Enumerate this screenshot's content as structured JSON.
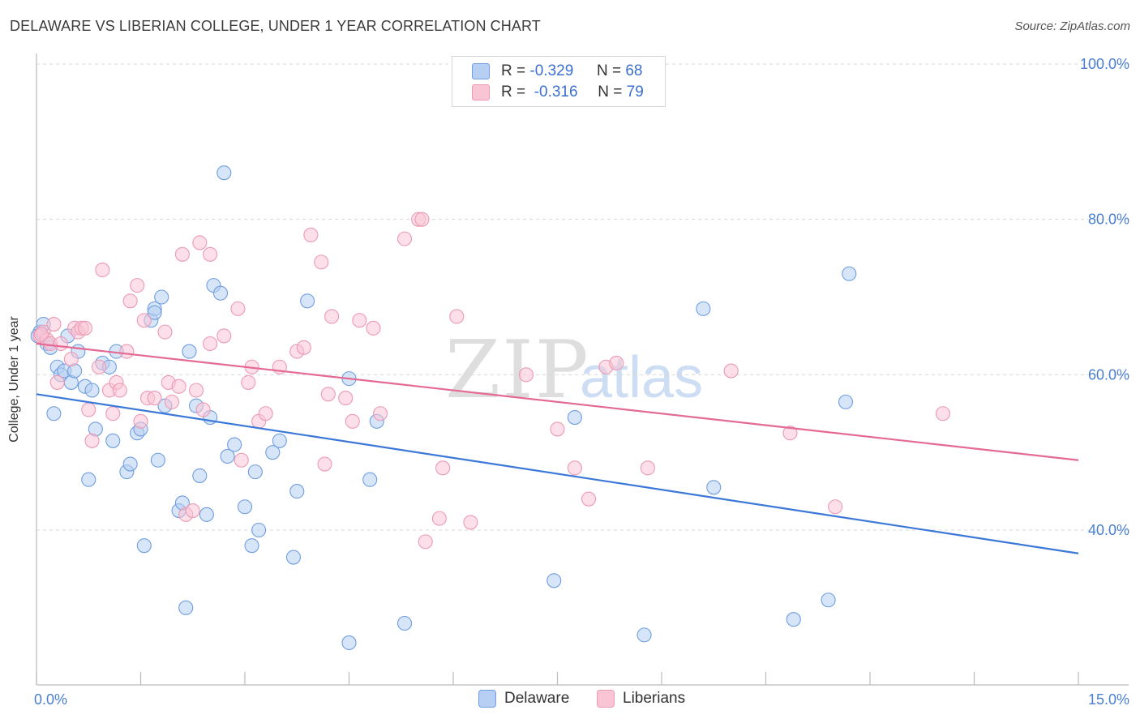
{
  "header": {
    "title": "DELAWARE VS LIBERIAN COLLEGE, UNDER 1 YEAR CORRELATION CHART",
    "source": "Source: ZipAtlas.com"
  },
  "watermark": {
    "zip": "ZIP",
    "atlas": "atlas"
  },
  "legend": {
    "delaware": {
      "r_label": "R =",
      "r_value": "-0.329",
      "n_label": "N =",
      "n_value": "68"
    },
    "liberians": {
      "r_label": "R =",
      "r_value": "-0.316",
      "n_label": "N =",
      "n_value": "79"
    }
  },
  "bottom_legend": {
    "delaware": "Delaware",
    "liberians": "Liberians"
  },
  "colors": {
    "delaware_fill": "#b7cff3",
    "delaware_stroke": "#6f9ee0",
    "delaware_line": "#3b78d8",
    "liberians_fill": "#f9c5d5",
    "liberians_stroke": "#ec9ab4",
    "liberians_line": "#e46a95",
    "grid": "#d8d8d8",
    "tick_text": "#4a7fd0"
  },
  "chart_data": {
    "type": "scatter",
    "title": "DELAWARE VS LIBERIAN COLLEGE, UNDER 1 YEAR CORRELATION CHART",
    "xlabel": "",
    "ylabel": "College, Under 1 year",
    "xlim": [
      0,
      15
    ],
    "ylim": [
      22,
      102
    ],
    "x_tick_labels": [
      {
        "v": 0,
        "label": "0.0%"
      },
      {
        "v": 15,
        "label": "15.0%"
      }
    ],
    "y_tick_labels": [
      {
        "v": 40,
        "label": "40.0%"
      },
      {
        "v": 60,
        "label": "60.0%"
      },
      {
        "v": 80,
        "label": "80.0%"
      },
      {
        "v": 100,
        "label": "100.0%"
      }
    ],
    "series": [
      {
        "name": "Delaware",
        "trend": {
          "x": [
            0,
            15
          ],
          "y": [
            57.5,
            37.0
          ]
        },
        "points": [
          [
            0.05,
            65.5
          ],
          [
            0.1,
            66.5
          ],
          [
            0.15,
            64
          ],
          [
            0.2,
            63.5
          ],
          [
            0.25,
            55
          ],
          [
            0.3,
            61
          ],
          [
            0.35,
            60
          ],
          [
            0.4,
            60.5
          ],
          [
            0.45,
            65
          ],
          [
            0.5,
            59
          ],
          [
            0.55,
            60.5
          ],
          [
            0.6,
            63
          ],
          [
            0.7,
            58.5
          ],
          [
            0.75,
            46.5
          ],
          [
            0.8,
            58
          ],
          [
            0.85,
            53
          ],
          [
            0.95,
            61.5
          ],
          [
            1.05,
            61
          ],
          [
            1.1,
            51.5
          ],
          [
            1.15,
            63
          ],
          [
            1.3,
            47.5
          ],
          [
            1.35,
            48.5
          ],
          [
            1.45,
            52.5
          ],
          [
            1.5,
            53
          ],
          [
            1.55,
            38
          ],
          [
            1.65,
            67
          ],
          [
            1.7,
            68.5
          ],
          [
            1.75,
            49
          ],
          [
            1.8,
            70
          ],
          [
            1.85,
            56
          ],
          [
            2.05,
            42.5
          ],
          [
            2.1,
            43.5
          ],
          [
            2.15,
            30
          ],
          [
            2.2,
            63
          ],
          [
            2.3,
            56
          ],
          [
            2.35,
            47
          ],
          [
            2.45,
            42
          ],
          [
            2.5,
            54.5
          ],
          [
            2.55,
            71.5
          ],
          [
            2.65,
            70.5
          ],
          [
            2.7,
            86
          ],
          [
            2.75,
            49.5
          ],
          [
            2.85,
            51
          ],
          [
            3.0,
            43
          ],
          [
            3.1,
            38
          ],
          [
            3.15,
            47.5
          ],
          [
            3.2,
            40
          ],
          [
            3.4,
            50
          ],
          [
            3.5,
            51.5
          ],
          [
            3.7,
            36.5
          ],
          [
            3.75,
            45
          ],
          [
            3.9,
            69.5
          ],
          [
            4.5,
            25.5
          ],
          [
            4.5,
            59.5
          ],
          [
            4.8,
            46.5
          ],
          [
            4.9,
            54
          ],
          [
            5.3,
            28
          ],
          [
            7.45,
            33.5
          ],
          [
            7.75,
            54.5
          ],
          [
            8.75,
            26.5
          ],
          [
            9.75,
            45.5
          ],
          [
            9.6,
            68.5
          ],
          [
            10.9,
            28.5
          ],
          [
            11.4,
            31
          ],
          [
            11.7,
            73
          ],
          [
            11.65,
            56.5
          ],
          [
            0.02,
            65.0
          ],
          [
            1.7,
            68.0
          ]
        ]
      },
      {
        "name": "Liberians",
        "trend": {
          "x": [
            0,
            15
          ],
          "y": [
            64.0,
            49.0
          ]
        },
        "points": [
          [
            0.05,
            65
          ],
          [
            0.1,
            65.5
          ],
          [
            0.15,
            64.5
          ],
          [
            0.2,
            64
          ],
          [
            0.25,
            66.5
          ],
          [
            0.3,
            59
          ],
          [
            0.35,
            64
          ],
          [
            0.5,
            62
          ],
          [
            0.55,
            66
          ],
          [
            0.6,
            65.5
          ],
          [
            0.65,
            66
          ],
          [
            0.7,
            66
          ],
          [
            0.75,
            55.5
          ],
          [
            0.8,
            51.5
          ],
          [
            0.9,
            61
          ],
          [
            0.95,
            73.5
          ],
          [
            1.05,
            58
          ],
          [
            1.1,
            55
          ],
          [
            1.15,
            59
          ],
          [
            1.2,
            58
          ],
          [
            1.3,
            63
          ],
          [
            1.35,
            69.5
          ],
          [
            1.45,
            71.5
          ],
          [
            1.5,
            54
          ],
          [
            1.55,
            67
          ],
          [
            1.6,
            57
          ],
          [
            1.7,
            57
          ],
          [
            1.85,
            65.5
          ],
          [
            1.9,
            59
          ],
          [
            1.95,
            56.5
          ],
          [
            2.05,
            58.5
          ],
          [
            2.1,
            75.5
          ],
          [
            2.15,
            42
          ],
          [
            2.25,
            42.5
          ],
          [
            2.3,
            58
          ],
          [
            2.35,
            77
          ],
          [
            2.4,
            55.5
          ],
          [
            2.5,
            75.5
          ],
          [
            2.5,
            64
          ],
          [
            2.7,
            65
          ],
          [
            2.9,
            68.5
          ],
          [
            2.95,
            49
          ],
          [
            3.05,
            59
          ],
          [
            3.1,
            61
          ],
          [
            3.2,
            54
          ],
          [
            3.3,
            55
          ],
          [
            3.5,
            61
          ],
          [
            3.75,
            63
          ],
          [
            3.85,
            63.5
          ],
          [
            3.95,
            78
          ],
          [
            4.1,
            74.5
          ],
          [
            4.15,
            48.5
          ],
          [
            4.2,
            57.5
          ],
          [
            4.25,
            67.5
          ],
          [
            4.45,
            57
          ],
          [
            4.55,
            54
          ],
          [
            4.65,
            67
          ],
          [
            4.85,
            66
          ],
          [
            4.95,
            55
          ],
          [
            5.3,
            77.5
          ],
          [
            5.5,
            80
          ],
          [
            5.55,
            80
          ],
          [
            5.6,
            38.5
          ],
          [
            5.8,
            41.5
          ],
          [
            5.85,
            48
          ],
          [
            6.05,
            67.5
          ],
          [
            6.25,
            41
          ],
          [
            7.05,
            60
          ],
          [
            7.5,
            53
          ],
          [
            7.75,
            48
          ],
          [
            7.95,
            44
          ],
          [
            8.2,
            61
          ],
          [
            8.35,
            61.5
          ],
          [
            8.8,
            48
          ],
          [
            10.0,
            60.5
          ],
          [
            10.85,
            52.5
          ],
          [
            11.5,
            43
          ],
          [
            13.05,
            55
          ],
          [
            0.07,
            65.2
          ]
        ]
      }
    ]
  }
}
